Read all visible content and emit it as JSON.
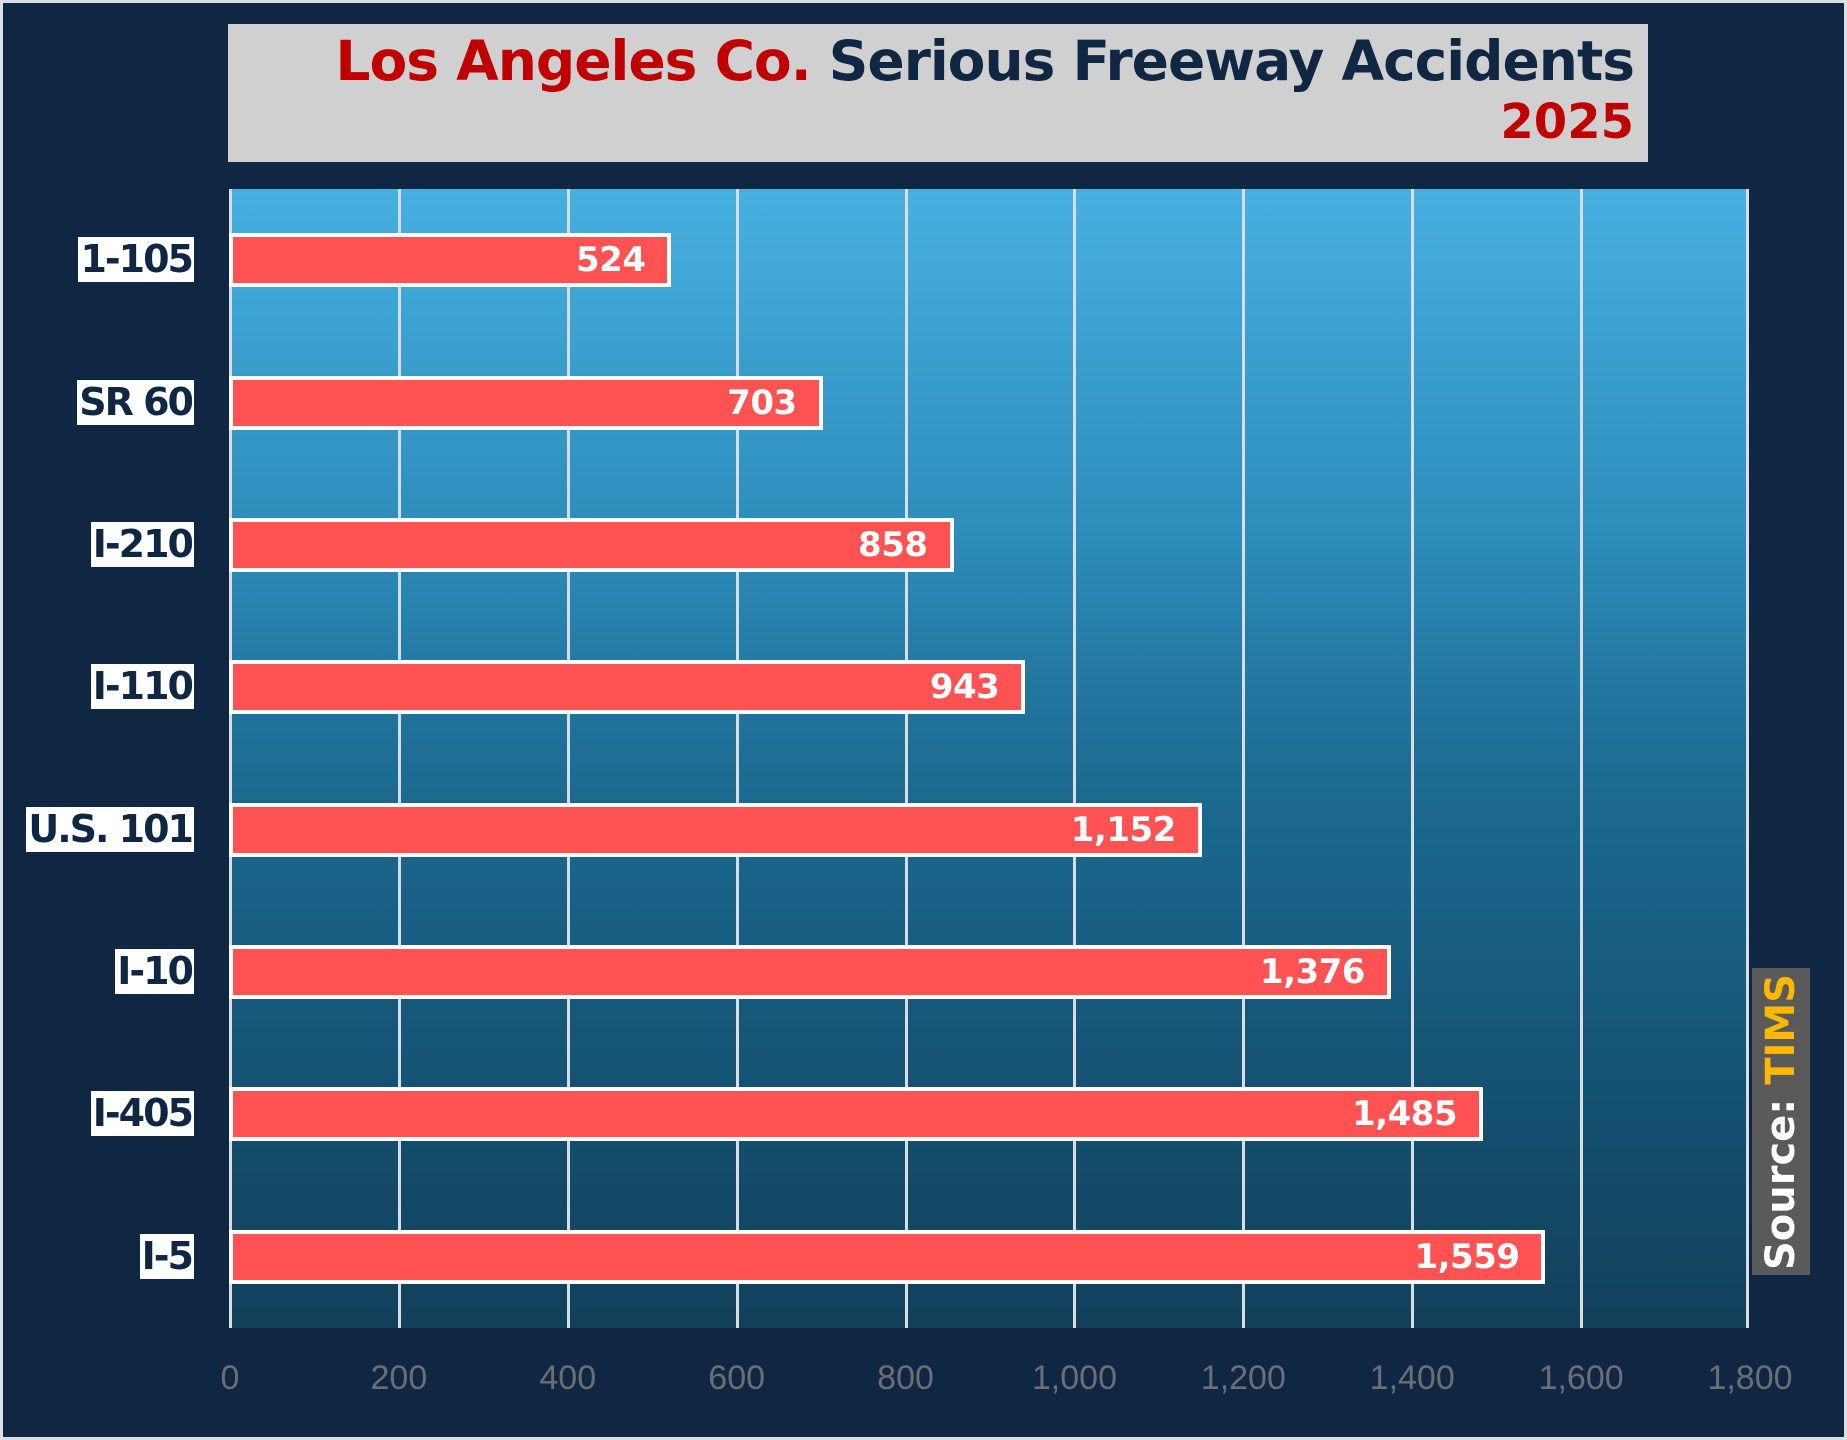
{
  "title": {
    "part1": "Los Angeles Co.",
    "part2": "Serious Freeway Accidents",
    "year": "2025"
  },
  "source": {
    "label": "Source:",
    "value": "TIMS"
  },
  "colors": {
    "background": "#0f2742",
    "title_box": "#d0d0d0",
    "title_red": "#c00000",
    "title_navy": "#0f2742",
    "bar_fill": "#ff5252",
    "bar_border": "#ffffff",
    "plot_top": "#47b0e0",
    "plot_bottom": "#12405a",
    "gridline": "#d8dde2",
    "tick_label": "#6b6f75",
    "source_box": "#5a5a5a",
    "source_value": "#ffb800"
  },
  "axis": {
    "x_ticks": [
      "0",
      "200",
      "400",
      "600",
      "800",
      "1,000",
      "1,200",
      "1,400",
      "1,600",
      "1,800"
    ]
  },
  "bars": [
    {
      "label": "1-105",
      "value": 524,
      "display": "524"
    },
    {
      "label": "SR 60",
      "value": 703,
      "display": "703"
    },
    {
      "label": "I-210",
      "value": 858,
      "display": "858"
    },
    {
      "label": "I-110",
      "value": 943,
      "display": "943"
    },
    {
      "label": "U.S. 101",
      "value": 1152,
      "display": "1,152"
    },
    {
      "label": "I-10",
      "value": 1376,
      "display": "1,376"
    },
    {
      "label": "I-405",
      "value": 1485,
      "display": "1,485"
    },
    {
      "label": "I-5",
      "value": 1559,
      "display": "1,559"
    }
  ],
  "chart_data": {
    "type": "bar",
    "orientation": "horizontal",
    "title": "Los Angeles Co. Serious Freeway Accidents 2025",
    "categories": [
      "1-105",
      "SR 60",
      "I-210",
      "I-110",
      "U.S. 101",
      "I-10",
      "I-405",
      "I-5"
    ],
    "values": [
      524,
      703,
      858,
      943,
      1152,
      1376,
      1485,
      1559
    ],
    "xlabel": "",
    "ylabel": "",
    "xlim": [
      0,
      1800
    ],
    "x_ticks": [
      0,
      200,
      400,
      600,
      800,
      1000,
      1200,
      1400,
      1600,
      1800
    ],
    "grid": "vertical",
    "data_labels": true,
    "legend": "none",
    "annotations": [
      "Source: TIMS"
    ]
  }
}
